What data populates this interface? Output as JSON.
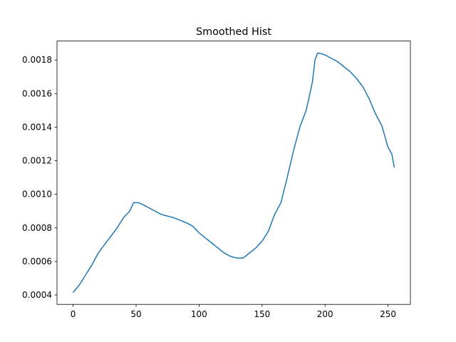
{
  "chart_data": {
    "type": "line",
    "title": "Smoothed Hist",
    "x": [
      0,
      5,
      10,
      15,
      20,
      25,
      30,
      35,
      40,
      45,
      48,
      52,
      55,
      60,
      65,
      70,
      80,
      90,
      95,
      100,
      105,
      110,
      115,
      120,
      125,
      130,
      135,
      140,
      145,
      150,
      155,
      160,
      165,
      170,
      175,
      180,
      185,
      188,
      190,
      192,
      194,
      196,
      200,
      205,
      210,
      215,
      220,
      225,
      230,
      235,
      240,
      245,
      250,
      253,
      255
    ],
    "values": [
      0.000415,
      0.00046,
      0.00052,
      0.00058,
      0.00065,
      0.0007,
      0.00075,
      0.0008,
      0.00086,
      0.0009,
      0.00095,
      0.00095,
      0.00094,
      0.00092,
      0.0009,
      0.00088,
      0.00086,
      0.00083,
      0.00081,
      0.00077,
      0.00074,
      0.00071,
      0.00068,
      0.00065,
      0.00063,
      0.00062,
      0.00062,
      0.00065,
      0.00068,
      0.00072,
      0.00078,
      0.00088,
      0.00095,
      0.0011,
      0.00126,
      0.0014,
      0.0015,
      0.0016,
      0.00167,
      0.0018,
      0.00184,
      0.00184,
      0.00183,
      0.00181,
      0.00179,
      0.00176,
      0.00173,
      0.00169,
      0.00164,
      0.00157,
      0.00148,
      0.00141,
      0.00128,
      0.00124,
      0.00116
    ],
    "color": "#1f77b4",
    "xlim": [
      -12.75,
      267.75
    ],
    "xticks": [
      0,
      50,
      100,
      150,
      200,
      250
    ],
    "ylim": [
      0.000344,
      0.001913
    ],
    "yticks": [
      0.0004,
      0.0006,
      0.0008,
      {
        "value": 0.001,
        "label": "0.0010"
      },
      0.0012,
      0.0014,
      0.0016,
      0.0018
    ],
    "grid": false
  }
}
